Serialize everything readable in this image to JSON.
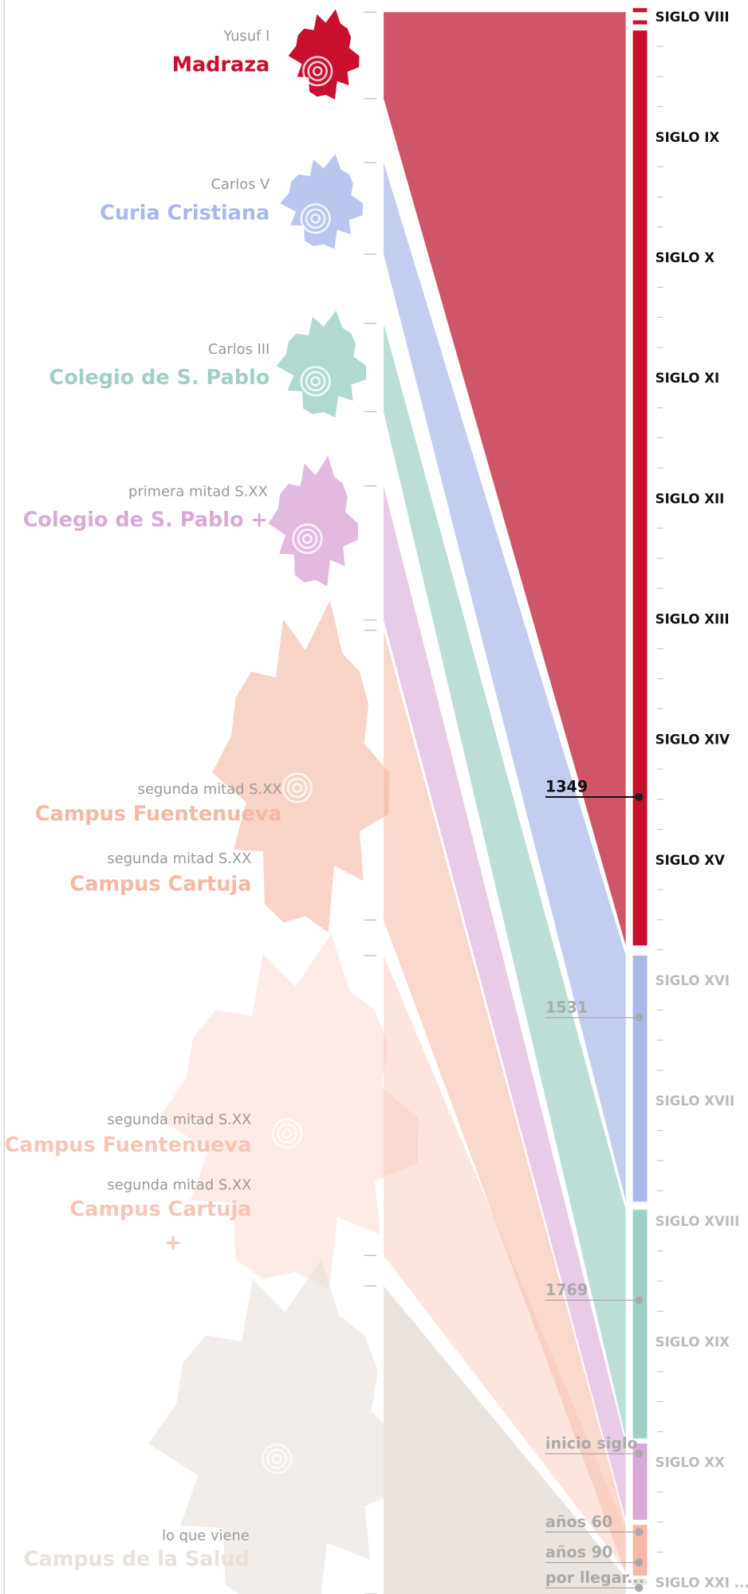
{
  "entries": [
    {
      "subtitle": "Yusuf I",
      "title": "Madraza",
      "color": "#c8102e"
    },
    {
      "subtitle": "Carlos V",
      "title": "Curia Cristiana",
      "color": "#aab8ea"
    },
    {
      "subtitle": "Carlos III",
      "title": "Colegio de S. Pablo",
      "color": "#9fd0c6"
    },
    {
      "subtitle": "primera mitad S.XX",
      "title": "Colegio de S. Pablo +",
      "color": "#d9a9d6"
    },
    {
      "subtitle": "segunda mitad S.XX",
      "title": "Campus Fuentenueva",
      "color": "#f4b8a4"
    },
    {
      "subtitle": "segunda mitad S.XX",
      "title": "Campus Cartuja",
      "color": "#f4b8a4"
    },
    {
      "subtitle": "segunda mitad S.XX",
      "title": "Campus Fuentenueva",
      "color": "#f6c5b6"
    },
    {
      "subtitle": "segunda mitad S.XX",
      "title": "Campus Cartuja",
      "suffix": "+",
      "color": "#f6c5b6"
    },
    {
      "subtitle": "lo que viene",
      "title": "Campus de la Salud",
      "color": "#e9e1da"
    }
  ],
  "centuries": [
    "SIGLO VIII",
    "SIGLO IX",
    "SIGLO X",
    "SIGLO XI",
    "SIGLO XII",
    "SIGLO XIII",
    "SIGLO XIV",
    "SIGLO XV",
    "SIGLO XVI",
    "SIGLO XVII",
    "SIGLO XVIII",
    "SIGLO XIX",
    "SIGLO XX",
    "SIGLO XXI ..."
  ],
  "markers": [
    "1349",
    "1531",
    "1769",
    "inicio siglo",
    "años 60",
    "años 90",
    "por llegar..."
  ]
}
